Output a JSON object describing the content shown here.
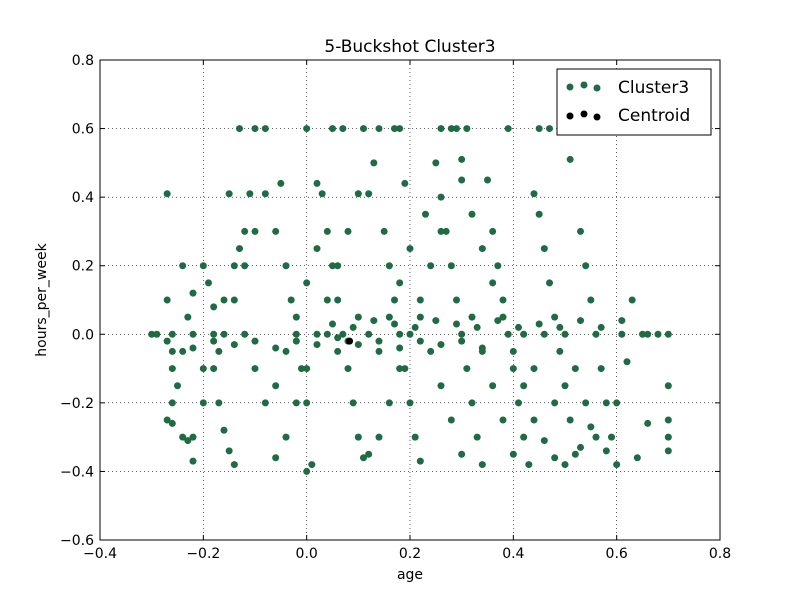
{
  "chart_data": {
    "type": "scatter",
    "title": "5-Buckshot Cluster3",
    "xlabel": "age",
    "ylabel": "hours_per_week",
    "xlim": [
      -0.4,
      0.8
    ],
    "ylim": [
      -0.6,
      0.8
    ],
    "xticks": [
      "−0.4",
      "−0.2",
      "0.0",
      "0.2",
      "0.4",
      "0.6",
      "0.8"
    ],
    "yticks": [
      "−0.6",
      "−0.4",
      "−0.2",
      "0.0",
      "0.2",
      "0.4",
      "0.6",
      "0.8"
    ],
    "grid": true,
    "legend_position": "top-right",
    "colors": {
      "cluster": "#1f6b43",
      "centroid": "#000000"
    },
    "series": [
      {
        "name": "Cluster3",
        "points": [
          [
            -0.3,
            0.0
          ],
          [
            -0.29,
            0.0
          ],
          [
            -0.27,
            -0.02
          ],
          [
            -0.27,
            0.1
          ],
          [
            -0.26,
            -0.05
          ],
          [
            -0.26,
            0.0
          ],
          [
            -0.26,
            -0.1
          ],
          [
            -0.26,
            -0.2
          ],
          [
            -0.25,
            -0.15
          ],
          [
            -0.27,
            -0.25
          ],
          [
            -0.26,
            -0.26
          ],
          [
            -0.24,
            -0.3
          ],
          [
            -0.23,
            -0.31
          ],
          [
            -0.22,
            -0.37
          ],
          [
            -0.24,
            -0.05
          ],
          [
            -0.23,
            0.05
          ],
          [
            -0.22,
            0.12
          ],
          [
            -0.2,
            0.2
          ],
          [
            -0.19,
            0.15
          ],
          [
            -0.18,
            0.08
          ],
          [
            -0.17,
            -0.05
          ],
          [
            -0.17,
            -0.2
          ],
          [
            -0.16,
            -0.28
          ],
          [
            -0.15,
            -0.34
          ],
          [
            -0.14,
            -0.38
          ],
          [
            -0.13,
            0.25
          ],
          [
            -0.12,
            0.3
          ],
          [
            -0.11,
            0.41
          ],
          [
            -0.15,
            0.41
          ],
          [
            -0.13,
            0.6
          ],
          [
            -0.1,
            0.6
          ],
          [
            -0.08,
            0.6
          ],
          [
            -0.06,
            0.3
          ],
          [
            -0.05,
            0.44
          ],
          [
            -0.04,
            0.2
          ],
          [
            -0.03,
            0.1
          ],
          [
            -0.02,
            0.0
          ],
          [
            -0.01,
            -0.1
          ],
          [
            0.0,
            -0.2
          ],
          [
            0.0,
            -0.4
          ],
          [
            0.01,
            -0.38
          ],
          [
            0.02,
            0.44
          ],
          [
            0.03,
            0.41
          ],
          [
            0.04,
            0.3
          ],
          [
            0.05,
            0.2
          ],
          [
            0.06,
            0.1
          ],
          [
            0.07,
            0.0
          ],
          [
            0.08,
            -0.1
          ],
          [
            0.09,
            -0.2
          ],
          [
            0.1,
            -0.3
          ],
          [
            0.11,
            -0.36
          ],
          [
            0.12,
            0.41
          ],
          [
            0.13,
            0.5
          ],
          [
            0.14,
            0.6
          ],
          [
            0.15,
            0.3
          ],
          [
            0.16,
            0.2
          ],
          [
            0.17,
            0.1
          ],
          [
            0.18,
            0.0
          ],
          [
            0.19,
            -0.1
          ],
          [
            0.2,
            -0.2
          ],
          [
            0.21,
            -0.3
          ],
          [
            0.22,
            -0.37
          ],
          [
            0.23,
            0.35
          ],
          [
            0.25,
            0.5
          ],
          [
            0.26,
            0.4
          ],
          [
            0.27,
            0.3
          ],
          [
            0.28,
            0.2
          ],
          [
            0.29,
            0.1
          ],
          [
            0.3,
            0.0
          ],
          [
            0.31,
            -0.1
          ],
          [
            0.32,
            -0.2
          ],
          [
            0.33,
            -0.3
          ],
          [
            0.34,
            -0.38
          ],
          [
            0.35,
            0.45
          ],
          [
            0.36,
            0.3
          ],
          [
            0.37,
            0.2
          ],
          [
            0.38,
            0.1
          ],
          [
            0.39,
            0.0
          ],
          [
            0.4,
            -0.1
          ],
          [
            0.41,
            -0.2
          ],
          [
            0.42,
            -0.3
          ],
          [
            0.43,
            -0.38
          ],
          [
            0.44,
            0.41
          ],
          [
            0.45,
            0.35
          ],
          [
            0.46,
            0.25
          ],
          [
            0.47,
            0.15
          ],
          [
            0.48,
            0.05
          ],
          [
            0.49,
            -0.05
          ],
          [
            0.5,
            -0.15
          ],
          [
            0.51,
            -0.25
          ],
          [
            0.52,
            -0.35
          ],
          [
            0.53,
            0.3
          ],
          [
            0.54,
            0.2
          ],
          [
            0.55,
            0.1
          ],
          [
            0.56,
            0.0
          ],
          [
            0.57,
            -0.1
          ],
          [
            0.58,
            -0.2
          ],
          [
            0.59,
            -0.3
          ],
          [
            0.6,
            -0.38
          ],
          [
            0.61,
            0.0
          ],
          [
            0.62,
            -0.08
          ],
          [
            0.63,
            0.1
          ],
          [
            0.64,
            -0.36
          ],
          [
            0.65,
            0.0
          ],
          [
            0.66,
            -0.26
          ],
          [
            0.7,
            0.0
          ],
          [
            0.7,
            -0.15
          ],
          [
            0.7,
            -0.25
          ],
          [
            0.7,
            -0.3
          ],
          [
            0.7,
            -0.34
          ],
          [
            0.68,
            0.0
          ],
          [
            0.66,
            0.0
          ],
          [
            0.6,
            -0.2
          ],
          [
            0.58,
            -0.34
          ],
          [
            0.55,
            -0.27
          ],
          [
            0.53,
            -0.33
          ],
          [
            0.5,
            -0.38
          ],
          [
            0.48,
            -0.36
          ],
          [
            0.46,
            -0.31
          ],
          [
            0.44,
            -0.25
          ],
          [
            0.42,
            -0.15
          ],
          [
            0.4,
            -0.05
          ],
          [
            0.38,
            0.05
          ],
          [
            0.36,
            0.15
          ],
          [
            0.34,
            0.25
          ],
          [
            0.32,
            0.35
          ],
          [
            0.3,
            0.45
          ],
          [
            0.28,
            0.6
          ],
          [
            0.26,
            0.3
          ],
          [
            0.24,
            0.2
          ],
          [
            0.22,
            0.1
          ],
          [
            0.2,
            0.0
          ],
          [
            0.18,
            -0.1
          ],
          [
            0.16,
            -0.2
          ],
          [
            0.14,
            -0.3
          ],
          [
            0.12,
            -0.35
          ],
          [
            0.1,
            0.41
          ],
          [
            0.08,
            0.3
          ],
          [
            0.06,
            0.2
          ],
          [
            0.04,
            0.1
          ],
          [
            0.02,
            0.0
          ],
          [
            0.0,
            -0.1
          ],
          [
            -0.02,
            -0.2
          ],
          [
            -0.04,
            -0.3
          ],
          [
            -0.06,
            -0.36
          ],
          [
            -0.08,
            0.41
          ],
          [
            -0.1,
            0.3
          ],
          [
            -0.12,
            0.2
          ],
          [
            -0.14,
            0.1
          ],
          [
            -0.16,
            0.0
          ],
          [
            -0.18,
            -0.1
          ],
          [
            -0.2,
            -0.2
          ],
          [
            -0.22,
            -0.3
          ],
          [
            -0.24,
            0.2
          ],
          [
            -0.22,
            0.0
          ],
          [
            -0.2,
            -0.1
          ],
          [
            -0.18,
            0.0
          ],
          [
            -0.16,
            0.1
          ],
          [
            -0.14,
            0.2
          ],
          [
            -0.12,
            0.0
          ],
          [
            -0.1,
            -0.1
          ],
          [
            -0.08,
            -0.2
          ],
          [
            -0.06,
            -0.15
          ],
          [
            -0.04,
            -0.05
          ],
          [
            -0.02,
            0.05
          ],
          [
            0.0,
            0.15
          ],
          [
            0.02,
            0.25
          ],
          [
            0.04,
            0.0
          ],
          [
            0.06,
            -0.05
          ],
          [
            0.08,
            -0.02
          ],
          [
            0.1,
            0.05
          ],
          [
            0.12,
            0.0
          ],
          [
            0.14,
            -0.05
          ],
          [
            0.16,
            0.05
          ],
          [
            0.18,
            0.15
          ],
          [
            0.2,
            0.25
          ],
          [
            0.22,
            0.05
          ],
          [
            0.24,
            -0.05
          ],
          [
            0.26,
            -0.15
          ],
          [
            0.28,
            -0.25
          ],
          [
            0.3,
            -0.35
          ],
          [
            0.32,
            0.05
          ],
          [
            0.34,
            -0.05
          ],
          [
            0.36,
            -0.15
          ],
          [
            0.38,
            -0.25
          ],
          [
            0.4,
            -0.35
          ],
          [
            0.42,
            0.0
          ],
          [
            0.44,
            -0.1
          ],
          [
            0.46,
            0.0
          ],
          [
            0.48,
            -0.2
          ],
          [
            0.5,
            0.0
          ],
          [
            0.52,
            -0.1
          ],
          [
            0.54,
            -0.2
          ],
          [
            0.56,
            -0.3
          ],
          [
            0.45,
            0.6
          ],
          [
            0.47,
            0.6
          ],
          [
            0.39,
            0.6
          ],
          [
            0.31,
            0.6
          ],
          [
            0.29,
            0.6
          ],
          [
            0.26,
            0.6
          ],
          [
            0.18,
            0.6
          ],
          [
            0.17,
            0.6
          ],
          [
            0.11,
            0.6
          ],
          [
            0.07,
            0.6
          ],
          [
            0.05,
            0.6
          ],
          [
            0.0,
            0.6
          ],
          [
            -0.27,
            0.41
          ],
          [
            0.51,
            0.51
          ],
          [
            0.3,
            0.51
          ],
          [
            0.19,
            0.44
          ],
          [
            0.06,
            -0.01
          ],
          [
            0.1,
            -0.03
          ],
          [
            0.14,
            -0.02
          ],
          [
            0.18,
            -0.04
          ],
          [
            0.22,
            -0.02
          ],
          [
            0.26,
            -0.03
          ],
          [
            0.3,
            -0.02
          ],
          [
            0.34,
            -0.04
          ],
          [
            0.02,
            -0.03
          ],
          [
            -0.02,
            -0.02
          ],
          [
            -0.06,
            -0.04
          ],
          [
            -0.1,
            -0.02
          ],
          [
            -0.14,
            -0.03
          ],
          [
            -0.18,
            -0.02
          ],
          [
            -0.22,
            -0.04
          ],
          [
            0.05,
            0.03
          ],
          [
            0.09,
            0.02
          ],
          [
            0.13,
            0.04
          ],
          [
            0.17,
            0.03
          ],
          [
            0.21,
            0.02
          ],
          [
            0.25,
            0.04
          ],
          [
            0.29,
            0.03
          ],
          [
            0.33,
            0.02
          ],
          [
            0.37,
            0.04
          ],
          [
            0.41,
            0.02
          ],
          [
            0.45,
            0.03
          ],
          [
            0.49,
            0.02
          ],
          [
            0.53,
            0.04
          ],
          [
            0.57,
            0.02
          ],
          [
            0.61,
            0.04
          ]
        ]
      },
      {
        "name": "Centroid",
        "points": [
          [
            0.083,
            -0.02
          ]
        ]
      }
    ]
  }
}
